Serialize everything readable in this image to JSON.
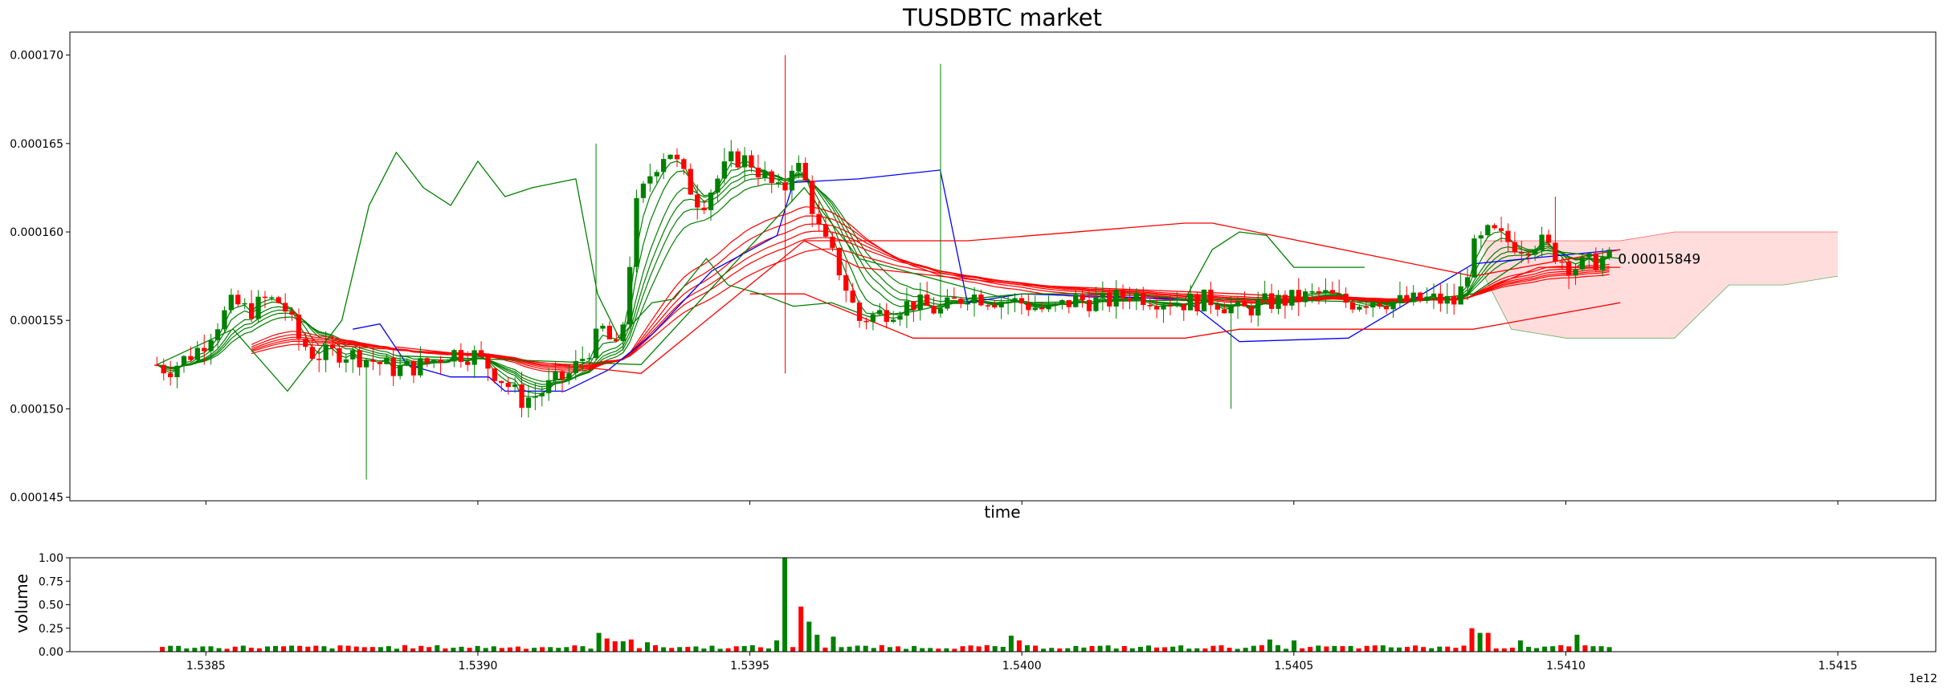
{
  "chart_data": [
    {
      "type": "candlestick",
      "title": "TUSDBTC market",
      "xlabel": "time",
      "ylabel": "",
      "x_offset_label": "1e12",
      "xlim": [
        1.53825,
        1.54168
      ],
      "ylim": [
        0.0001448,
        0.0001713
      ],
      "x_ticks": [
        1.5385,
        1.539,
        1.5395,
        1.54,
        1.5405,
        1.541,
        1.5415
      ],
      "x_tick_labels": [
        "1.5385",
        "1.5390",
        "1.5395",
        "1.5400",
        "1.5405",
        "1.5410",
        "1.5415"
      ],
      "y_ticks": [
        0.000145,
        0.00015,
        0.000155,
        0.00016,
        0.000165,
        0.00017
      ],
      "y_tick_labels": [
        "0.000145",
        "0.000150",
        "0.000155",
        "0.000160",
        "0.000165",
        "0.000170"
      ],
      "grid": false,
      "price_annotation": {
        "x": 1.54109,
        "y": 0.00015849,
        "text": "0.00015849"
      },
      "colors": {
        "up": "#008000",
        "down": "#ff0000",
        "cloud": "#ffdddd",
        "kijun": "#0000ff"
      },
      "candle_anchors": {
        "x": [
          1.53841,
          1.53843,
          1.53846,
          1.53849,
          1.53852,
          1.53855,
          1.53858,
          1.53861,
          1.53864,
          1.53867,
          1.5387,
          1.53875,
          1.5388,
          1.53885,
          1.5389,
          1.53895,
          1.539,
          1.53905,
          1.53908,
          1.53911,
          1.53914,
          1.53917,
          1.5392,
          1.53923,
          1.53926,
          1.53929,
          1.53932,
          1.53935,
          1.53938,
          1.53941,
          1.53944,
          1.53947,
          1.5395,
          1.53953,
          1.53956,
          1.53958,
          1.5396,
          1.53963,
          1.53966,
          1.5397,
          1.53975,
          1.5398,
          1.53985,
          1.5399,
          1.53995,
          1.54,
          1.54005,
          1.5401,
          1.54015,
          1.5402,
          1.54025,
          1.5403,
          1.54035,
          1.5404,
          1.54045,
          1.5405,
          1.54055,
          1.5406,
          1.54065,
          1.5407,
          1.54075,
          1.5408,
          1.54083,
          1.54086,
          1.54089,
          1.54092,
          1.54095,
          1.54098,
          1.54101,
          1.54104,
          1.54107,
          1.5411
        ],
        "close": [
          0.0001525,
          0.0001522,
          0.0001528,
          0.0001535,
          0.0001548,
          0.000156,
          0.0001555,
          0.0001562,
          0.000156,
          0.000154,
          0.000153,
          0.0001532,
          0.0001528,
          0.0001522,
          0.0001525,
          0.0001532,
          0.000153,
          0.0001515,
          0.0001505,
          0.0001508,
          0.0001515,
          0.000152,
          0.0001532,
          0.0001545,
          0.000153,
          0.0001613,
          0.0001635,
          0.0001648,
          0.000163,
          0.0001615,
          0.000163,
          0.0001642,
          0.000164,
          0.000163,
          0.000162,
          0.0001642,
          0.000163,
          0.0001598,
          0.0001582,
          0.000155,
          0.0001555,
          0.000156,
          0.0001555,
          0.0001565,
          0.0001562,
          0.000156,
          0.0001555,
          0.0001562,
          0.000156,
          0.0001565,
          0.0001562,
          0.000156,
          0.0001562,
          0.0001555,
          0.000156,
          0.0001562,
          0.0001565,
          0.000156,
          0.0001562,
          0.000156,
          0.0001562,
          0.000156,
          0.000159,
          0.00016,
          0.0001595,
          0.0001592,
          0.0001595,
          0.0001588,
          0.000158,
          0.0001582,
          0.0001585,
          0.0001585
        ]
      },
      "overlay_lines": [
        {
          "name": "",
          "color": "#0000ff",
          "x": [
            1.53877,
            1.53882,
            1.53887,
            1.53895,
            1.53902,
            1.53905,
            1.53916,
            1.53924,
            1.53932,
            1.53943,
            1.53955,
            1.53958,
            1.5397,
            1.53985,
            1.5399,
            1.54,
            1.5403,
            1.5404,
            1.5406,
            1.54083,
            1.5411
          ],
          "y": [
            0.0001545,
            0.0001548,
            0.0001525,
            0.0001518,
            0.0001518,
            0.000151,
            0.000151,
            0.0001522,
            0.0001542,
            0.0001578,
            0.0001598,
            0.0001628,
            0.000163,
            0.0001635,
            0.000156,
            0.0001565,
            0.0001562,
            0.0001538,
            0.000154,
            0.0001582,
            0.000159
          ]
        },
        {
          "name": "",
          "color": "#ff0000",
          "x": [
            1.5395,
            1.5396,
            1.5398,
            1.5399,
            1.5403,
            1.5404,
            1.54083,
            1.5411
          ],
          "y": [
            0.0001565,
            0.0001565,
            0.000154,
            0.000154,
            0.000154,
            0.0001545,
            0.0001545,
            0.000156
          ]
        },
        {
          "name": "",
          "color": "#ff0000",
          "x": [
            1.5396,
            1.5399,
            1.5403,
            1.54035,
            1.54083,
            1.5411
          ],
          "y": [
            0.0001595,
            0.0001595,
            0.0001605,
            0.0001605,
            0.0001575,
            0.000159
          ]
        },
        {
          "name": "",
          "color": "#008000",
          "x": [
            1.53841,
            1.53855,
            1.53865,
            1.5387,
            1.53875,
            1.5388,
            1.53885,
            1.5389,
            1.53895,
            1.539,
            1.53905,
            1.5391,
            1.53918,
            1.53922,
            1.53926,
            1.53932,
            1.53936,
            1.53942,
            1.53946,
            1.53952,
            1.53958,
            1.53965,
            1.53972,
            1.5398,
            1.5399,
            1.54,
            1.5401,
            1.5402,
            1.5403,
            1.54035,
            1.5404,
            1.54045,
            1.5405,
            1.54055,
            1.54063
          ],
          "y": [
            0.0001525,
            0.0001545,
            0.000151,
            0.000153,
            0.000155,
            0.0001615,
            0.0001645,
            0.0001625,
            0.0001615,
            0.000164,
            0.000162,
            0.0001625,
            0.000163,
            0.0001565,
            0.000154,
            0.000156,
            0.0001562,
            0.0001585,
            0.000157,
            0.0001565,
            0.0001558,
            0.000156,
            0.0001552,
            0.0001555,
            0.0001562,
            0.0001565,
            0.0001565,
            0.0001565,
            0.0001562,
            0.000159,
            0.00016,
            0.0001598,
            0.000158,
            0.000158,
            0.000158
          ]
        },
        {
          "name": "",
          "color": "#ff0000",
          "x": [
            1.53885,
            1.5393,
            1.5396,
            1.5397,
            1.54,
            1.5404,
            1.5407,
            1.54083,
            1.54095,
            1.5411
          ],
          "y": [
            0.0001535,
            0.000152,
            0.0001595,
            0.000158,
            0.000157,
            0.0001565,
            0.000156,
            0.0001565,
            0.000158,
            0.000158
          ]
        },
        {
          "name": "",
          "color": "#008000",
          "x": [
            1.53885,
            1.5393,
            1.5396,
            1.5397,
            1.54,
            1.5404,
            1.5407,
            1.54083,
            1.54095,
            1.5411
          ],
          "y": [
            0.000153,
            0.0001525,
            0.0001625,
            0.0001585,
            0.000156,
            0.0001562,
            0.000156,
            0.0001565,
            0.000159,
            0.0001585
          ]
        }
      ],
      "cloud": {
        "x": [
          1.54085,
          1.5409,
          1.541,
          1.5411,
          1.5412,
          1.5413,
          1.5414,
          1.5415
        ],
        "upper": [
          0.0001595,
          0.0001595,
          0.0001595,
          0.0001595,
          0.00016,
          0.00016,
          0.00016,
          0.00016
        ],
        "lower": [
          0.0001575,
          0.0001545,
          0.000154,
          0.000154,
          0.000154,
          0.000157,
          0.000157,
          0.0001575
        ],
        "upper_line_color": "#ff0000",
        "lower_line_color": "#008000"
      }
    },
    {
      "type": "bar",
      "title": "",
      "xlabel": "",
      "ylabel": "volume",
      "ylim": [
        0,
        1.0
      ],
      "y_ticks": [
        0.0,
        0.25,
        0.5,
        0.75,
        1.0
      ],
      "y_tick_labels": [
        "0.00",
        "0.25",
        "0.50",
        "0.75",
        "1.00"
      ],
      "x_ticks": [
        1.5385,
        1.539,
        1.5395,
        1.54,
        1.5405,
        1.541,
        1.5415
      ],
      "x_tick_labels": [
        "1.5385",
        "1.5390",
        "1.5395",
        "1.5400",
        "1.5405",
        "1.5410",
        "1.5415"
      ],
      "x_offset_label": "1e12",
      "xlim": [
        1.53825,
        1.54168
      ],
      "baseline_volume": 0.05,
      "volume_spikes": [
        {
          "x": 1.53922,
          "value": 0.2
        },
        {
          "x": 1.53924,
          "value": 0.14
        },
        {
          "x": 1.53926,
          "value": 0.11
        },
        {
          "x": 1.53928,
          "value": 0.13
        },
        {
          "x": 1.53931,
          "value": 0.1
        },
        {
          "x": 1.53955,
          "value": 0.12
        },
        {
          "x": 1.53957,
          "value": 1.0
        },
        {
          "x": 1.53959,
          "value": 0.48
        },
        {
          "x": 1.53961,
          "value": 0.32
        },
        {
          "x": 1.53963,
          "value": 0.18
        },
        {
          "x": 1.53965,
          "value": 0.16
        },
        {
          "x": 1.53998,
          "value": 0.17
        },
        {
          "x": 1.54,
          "value": 0.12
        },
        {
          "x": 1.54046,
          "value": 0.13
        },
        {
          "x": 1.5405,
          "value": 0.12
        },
        {
          "x": 1.54083,
          "value": 0.25
        },
        {
          "x": 1.54085,
          "value": 0.2
        },
        {
          "x": 1.54102,
          "value": 0.18
        },
        {
          "x": 1.54092,
          "value": 0.12
        }
      ]
    }
  ]
}
